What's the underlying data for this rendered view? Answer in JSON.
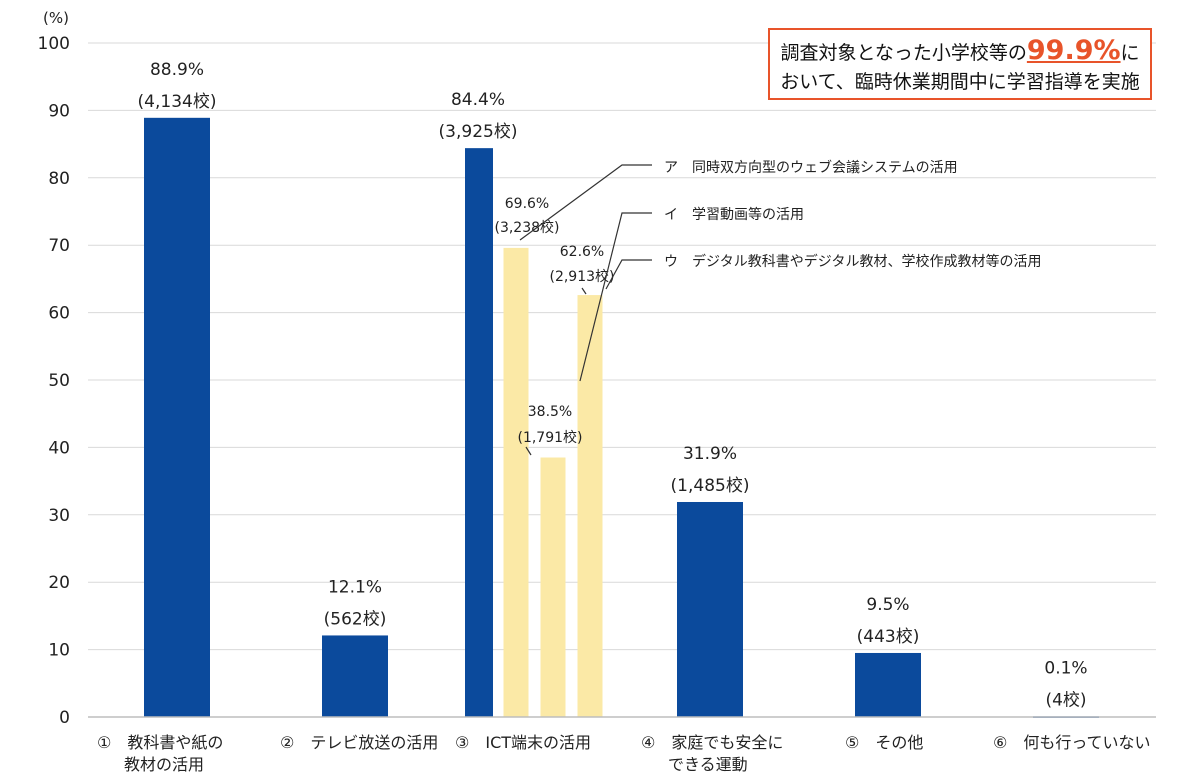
{
  "chart_data": {
    "type": "bar",
    "y_unit": "(%)",
    "ylim": [
      0,
      100
    ],
    "yticks": [
      "0",
      "10",
      "20",
      "30",
      "40",
      "50",
      "60",
      "70",
      "80",
      "90",
      "100"
    ],
    "grid": true,
    "colors": {
      "main": "#0b4a9c",
      "sub": "#fbe9a6",
      "grid": "#d9d9d9",
      "callout": "#e8542a"
    },
    "categories": [
      [
        "①　教科書や紙の",
        "教材の活用"
      ],
      [
        "②　テレビ放送の活用"
      ],
      [
        "③　ICT端末の活用"
      ],
      [
        "④　家庭でも安全に",
        "できる運動"
      ],
      [
        "⑤　その他"
      ],
      [
        "⑥　何も行っていない"
      ]
    ],
    "values": [
      88.9,
      12.1,
      84.4,
      31.9,
      9.5,
      0.1
    ],
    "value_labels": [
      "88.9%",
      "12.1%",
      "84.4%",
      "31.9%",
      "9.5%",
      "0.1%"
    ],
    "count_labels": [
      "(4,134校)",
      "(562校)",
      "(3,925校)",
      "(1,485校)",
      "(443校)",
      "(4校)"
    ],
    "sub_series": [
      {
        "name": "ア　同時双方向型のウェブ会議システムの活用",
        "value": 69.6,
        "value_label": "69.6%",
        "count_label": "(3,238校)"
      },
      {
        "name": "イ　学習動画等の活用",
        "value": 38.5,
        "value_label": "38.5%",
        "count_label": "(1,791校)"
      },
      {
        "name": "ウ　デジタル教科書やデジタル教材、学校作成教材等の活用",
        "value": 62.6,
        "value_label": "62.6%",
        "count_label": "(2,913校)"
      }
    ],
    "callout": {
      "line1_pre": "調査対象となった小学校等の",
      "line1_big": "99.9%",
      "line1_post": "に",
      "line2": "おいて、臨時休業期間中に学習指導を実施"
    }
  }
}
